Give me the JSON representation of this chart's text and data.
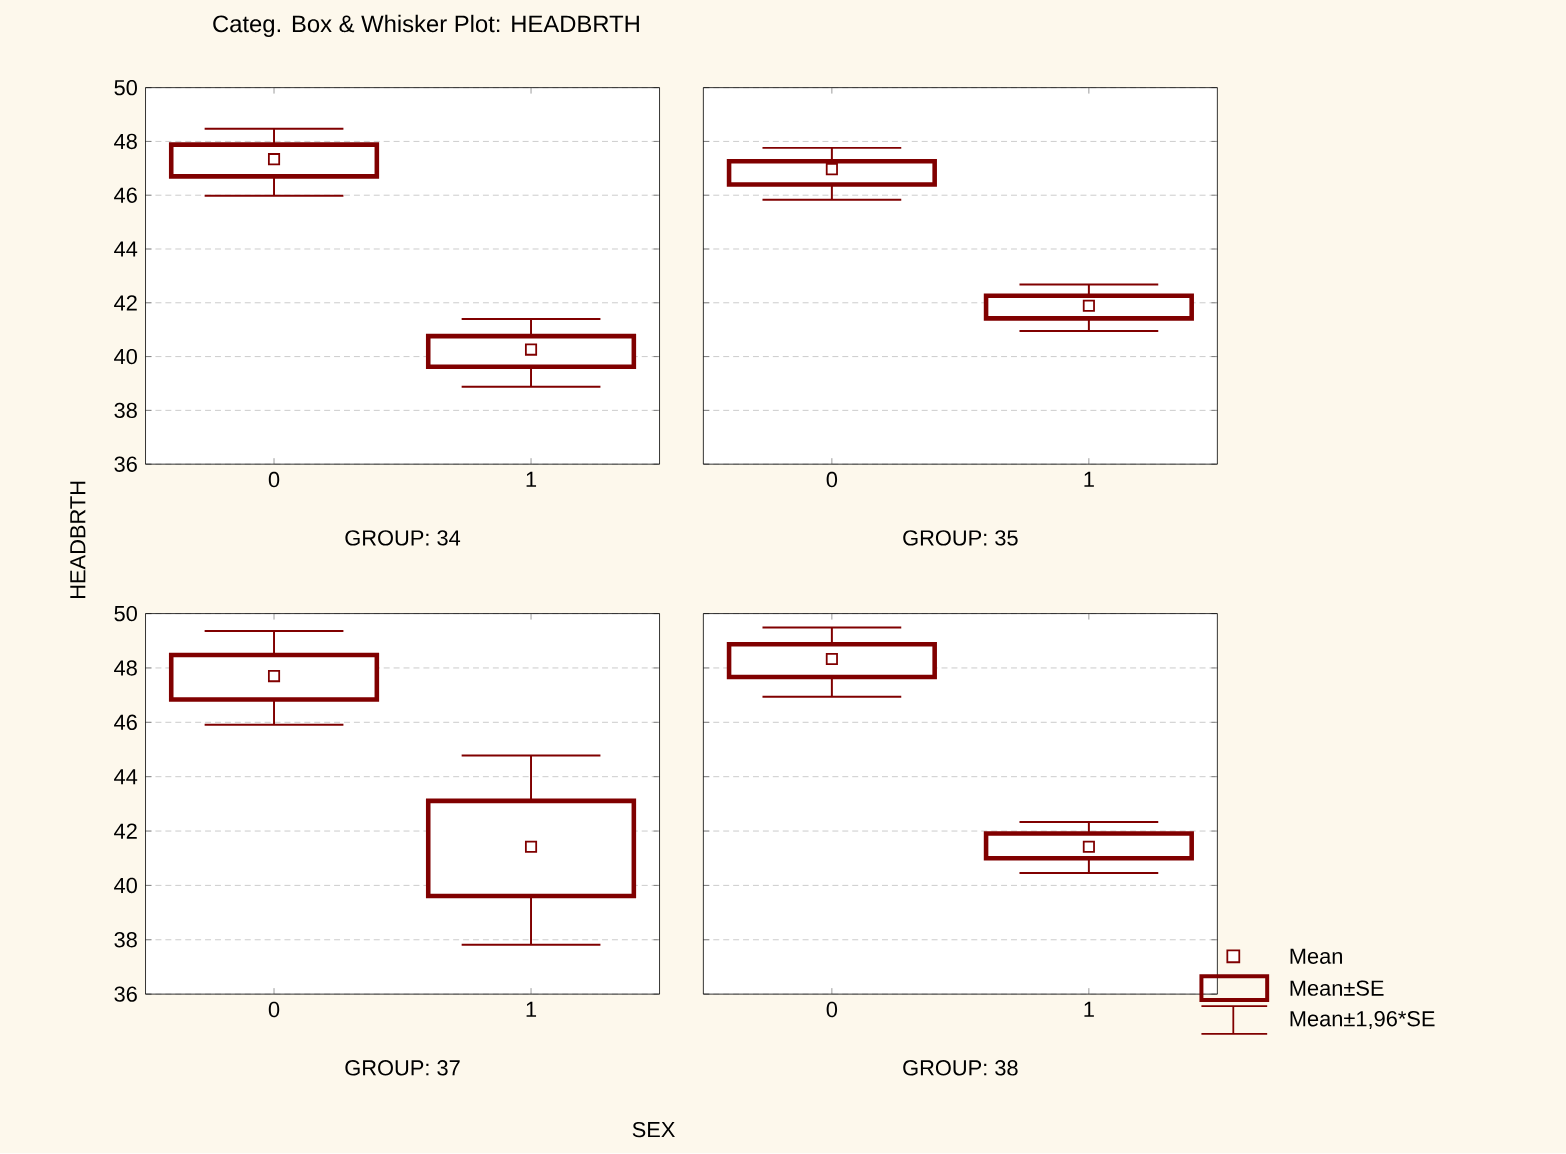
{
  "chart_data": [
    {
      "type": "box",
      "title": "Categ. Box & Whisker Plot: HEADBRTH",
      "ylabel": "HEADBRTH",
      "xlabel": "GROUP: 34",
      "categories": [
        "0",
        "1"
      ],
      "color": "#800000",
      "ylim": [
        36,
        50
      ],
      "yticks": [
        36,
        38,
        40,
        42,
        44,
        46,
        48,
        50
      ],
      "grid": "y",
      "boxes": [
        {
          "low": 45.98,
          "q1": 46.7,
          "median": 47.34,
          "q3": 47.88,
          "high": 48.47
        },
        {
          "low": 38.88,
          "q1": 39.62,
          "median": 40.26,
          "q3": 40.76,
          "high": 41.4
        }
      ]
    },
    {
      "type": "box",
      "xlabel": "GROUP: 35",
      "categories": [
        "0",
        "1"
      ],
      "color": "#800000",
      "ylim": [
        36,
        50
      ],
      "yticks": [
        36,
        38,
        40,
        42,
        44,
        46,
        48,
        50
      ],
      "grid": "y",
      "tick_labels": "x",
      "boxes": [
        {
          "low": 45.83,
          "q1": 46.4,
          "median": 46.97,
          "q3": 47.26,
          "high": 47.76
        },
        {
          "low": 40.95,
          "q1": 41.42,
          "median": 41.89,
          "q3": 42.26,
          "high": 42.68
        }
      ]
    },
    {
      "type": "box",
      "xlabel": "GROUP: 37",
      "categories": [
        "0",
        "1"
      ],
      "color": "#800000",
      "ylim": [
        36,
        50
      ],
      "yticks": [
        36,
        38,
        40,
        42,
        44,
        46,
        48,
        50
      ],
      "grid": "y",
      "boxes": [
        {
          "low": 45.91,
          "q1": 46.84,
          "median": 47.7,
          "q3": 48.48,
          "high": 49.36
        },
        {
          "low": 37.82,
          "q1": 39.61,
          "median": 41.42,
          "q3": 43.11,
          "high": 44.78
        }
      ]
    },
    {
      "type": "box",
      "xlabel": "GROUP: 38",
      "categories": [
        "0",
        "1"
      ],
      "color": "#800000",
      "ylim": [
        36,
        50
      ],
      "yticks": [
        36,
        38,
        40,
        42,
        44,
        46,
        48,
        50
      ],
      "grid": "y",
      "tick_labels": "x",
      "annotations": [
        "SEX",
        "Mean",
        "Mean±SE",
        "Mean±1,96*SE"
      ],
      "boxes": [
        {
          "low": 46.94,
          "q1": 47.67,
          "median": 48.33,
          "q3": 48.87,
          "high": 49.49
        },
        {
          "low": 40.46,
          "q1": 41.0,
          "median": 41.42,
          "q3": 41.91,
          "high": 42.33
        }
      ]
    }
  ]
}
